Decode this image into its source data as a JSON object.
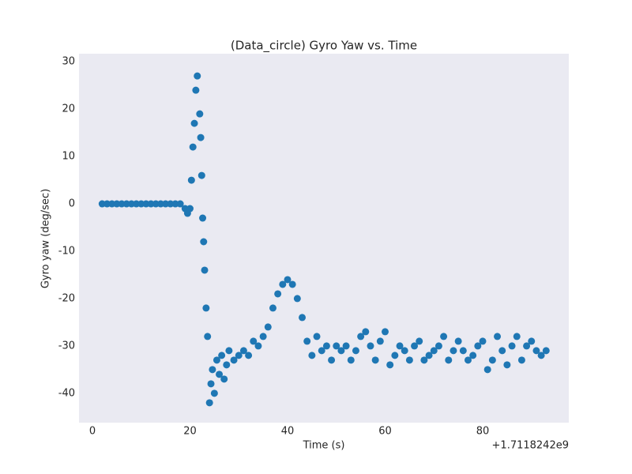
{
  "chart_data": {
    "type": "scatter",
    "title": "(Data_circle) Gyro Yaw vs. Time",
    "x_label": "Time (s)",
    "y_label": "Gyro yaw (deg/sec)",
    "x_offset_label": "+1.7118242e9",
    "color": "#1f77b4",
    "grid": false,
    "xlim": [
      -2.75,
      97.65
    ],
    "ylim": [
      -46.2,
      31.7
    ],
    "xticks": [
      0,
      20,
      40,
      60,
      80
    ],
    "yticks": [
      -40,
      -30,
      -20,
      -10,
      0,
      10,
      20,
      30
    ],
    "x": [
      2,
      3,
      4,
      5,
      6,
      7,
      8,
      9,
      10,
      11,
      12,
      13,
      14,
      15,
      16,
      17,
      18,
      19,
      19.5,
      20,
      20.3,
      20.6,
      20.9,
      21.2,
      21.5,
      22,
      22.2,
      22.4,
      22.6,
      22.8,
      23,
      23.3,
      23.6,
      24,
      24.3,
      24.6,
      25,
      25.5,
      26,
      26.5,
      27,
      27.5,
      28,
      29,
      30,
      31,
      32,
      33,
      34,
      35,
      36,
      37,
      38,
      39,
      40,
      41,
      42,
      43,
      44,
      45,
      46,
      47,
      48,
      49,
      50,
      51,
      52,
      53,
      54,
      55,
      56,
      57,
      58,
      59,
      60,
      61,
      62,
      63,
      64,
      65,
      66,
      67,
      68,
      69,
      70,
      71,
      72,
      73,
      74,
      75,
      76,
      77,
      78,
      79,
      80,
      81,
      82,
      83,
      84,
      85,
      86,
      87,
      88,
      89,
      90,
      91,
      92,
      93
    ],
    "values": [
      0,
      0,
      0,
      0,
      0,
      0,
      0,
      0,
      0,
      0,
      0,
      0,
      0,
      0,
      0,
      0,
      0,
      -1,
      -2,
      -1,
      5,
      12,
      17,
      24,
      27,
      19,
      14,
      6,
      -3,
      -8,
      -14,
      -22,
      -28,
      -42,
      -38,
      -35,
      -40,
      -33,
      -36,
      -32,
      -37,
      -34,
      -31,
      -33,
      -32,
      -31,
      -32,
      -29,
      -30,
      -28,
      -26,
      -22,
      -19,
      -17,
      -16,
      -17,
      -20,
      -24,
      -29,
      -32,
      -28,
      -31,
      -30,
      -33,
      -30,
      -31,
      -30,
      -33,
      -31,
      -28,
      -27,
      -30,
      -33,
      -29,
      -27,
      -34,
      -32,
      -30,
      -31,
      -33,
      -30,
      -29,
      -33,
      -32,
      -31,
      -30,
      -28,
      -33,
      -31,
      -29,
      -31,
      -33,
      -32,
      -30,
      -29,
      -35,
      -33,
      -28,
      -31,
      -34,
      -30,
      -28,
      -33,
      -30,
      -29,
      -31,
      -32,
      -31
    ]
  }
}
